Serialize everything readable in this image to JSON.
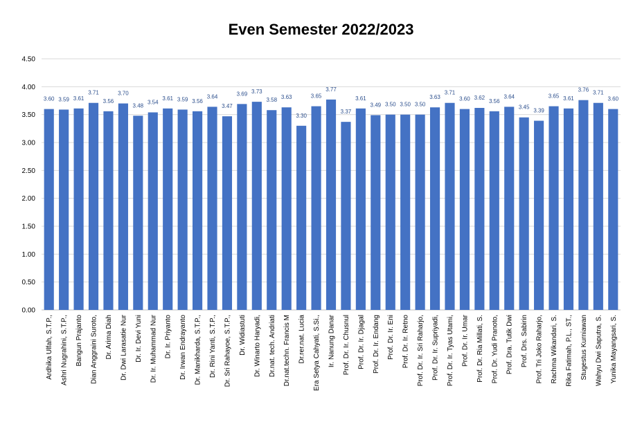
{
  "chart_data": {
    "type": "bar",
    "title": "Even Semester 2022/2023",
    "xlabel": "",
    "ylabel": "",
    "ylim": [
      0,
      4.5
    ],
    "yticks": [
      "0.00",
      "0.50",
      "1.00",
      "1.50",
      "2.00",
      "2.50",
      "3.00",
      "3.50",
      "4.00",
      "4.50"
    ],
    "grid": true,
    "bar_color": "#4472c4",
    "categories": [
      "Ardhika Ulfah, S.T.P.,",
      "Ashri Nugrahini, S.T.P.,",
      "Bangun Prajanto",
      "Dian Anggraini Suroto,",
      "Dr. Arima Diah",
      "Dr. Dwi Larasatie Nur",
      "Dr. Ir. Devi Yuni",
      "Dr. Ir. Muhammad Nur",
      "Dr. Ir. Priyanto",
      "Dr. Irwan Endrayanto",
      "Dr. Manikharda, S.T.P.,",
      "Dr. Rini Yanti, S.T.P.,",
      "Dr. Sri Rahayoe, S.T.P.,",
      "Dr. Widiastuti",
      "Dr. Winarto Haryadi,",
      "Dr.nat. tech. Andriati",
      "Dr.nat.techn. Francis M",
      "Dr.rer.nat. Lucia",
      "Era Setya Cahyati, S.Si.,",
      "Ir. Nanung Danar",
      "Prof. Dr. Ir. Chusnul",
      "Prof. Dr. Ir. Djagal",
      "Prof. Dr. Ir. Endang",
      "Prof. Dr. Ir. Eni",
      "Prof. Dr. Ir. Retno",
      "Prof. Dr. Ir. Sri Raharjo,",
      "Prof. Dr. Ir. Supriyadi,",
      "Prof. Dr. Ir. Tyas Utami,",
      "Prof. Dr. Ir. Umar",
      "Prof. Dr. Ria Millati, S.",
      "Prof. Dr. Yudi Pranoto,",
      "Prof. Dra. Tutik Dwi",
      "Prof. Drs. Sabirin",
      "Prof. Tri Joko Raharjo,",
      "Rachma Wikandari, S.",
      "Rika Fatimah, P.L., ST.,",
      "Stugestus Kurniawan",
      "Wahyu Dwi Saputra, S.",
      "Yunika Mayangsari, S."
    ],
    "values": [
      3.6,
      3.59,
      3.61,
      3.71,
      3.56,
      3.7,
      3.48,
      3.54,
      3.61,
      3.59,
      3.56,
      3.64,
      3.47,
      3.69,
      3.73,
      3.58,
      3.63,
      3.3,
      3.65,
      3.77,
      3.37,
      3.61,
      3.49,
      3.5,
      3.5,
      3.5,
      3.63,
      3.71,
      3.6,
      3.62,
      3.56,
      3.64,
      3.45,
      3.39,
      3.65,
      3.61,
      3.76,
      3.71,
      3.6
    ],
    "data_labels": [
      "3.60",
      "3.59",
      "3.61",
      "3.71",
      "3.56",
      "3.70",
      "3.48",
      "3.54",
      "3.61",
      "3.59",
      "3.56",
      "3.64",
      "3.47",
      "3.69",
      "3.73",
      "3.58",
      "3.63",
      "3.30",
      "3.65",
      "3.77",
      "3.37",
      "3.61",
      "3.49",
      "3.50",
      "3.50",
      "3.50",
      "3.63",
      "3.71",
      "3.60",
      "3.62",
      "3.56",
      "3.64",
      "3.45",
      "3.39",
      "3.65",
      "3.61",
      "3.76",
      "3.71",
      "3.60"
    ]
  }
}
